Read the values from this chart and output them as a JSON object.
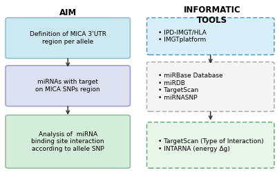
{
  "background_color": "#ffffff",
  "title_aim": "AIM",
  "title_informatic": "INFORMATIC\nTOOLS",
  "title_fontsize": 8.5,
  "title_fontweight": "bold",
  "box1_text": "Definition of MICA 3’UTR\nregion per allele",
  "box2_text": "miRNAs with target\non MICA SNPs region",
  "box3_text": "Analysis of  miRNA\nbinding site interaction\naccording to allele SNP",
  "box1_color": "#cce8f0",
  "box1_edge": "#88bbcc",
  "box2_color": "#dde0f0",
  "box2_edge": "#9999cc",
  "box3_color": "#d4edda",
  "box3_edge": "#88bb99",
  "info_box1_text": "• IPD-IMGT/HLA\n• IMGTplatform",
  "info_box2_text": "• miRBase Database\n• miRDB\n• TargetScan\n• miRNASNP",
  "info_box3_text": "• TargetScan (Type of Interaction)\n• INTARNA (energy Δg)",
  "info_box1_fill": "#d8eef8",
  "info_box2_fill": "#f5f5f5",
  "info_box3_fill": "#e8f5e9",
  "info_box1_edge": "#5599bb",
  "info_box2_edge": "#aaaaaa",
  "info_box3_edge": "#66aa77",
  "text_fontsize": 6.5,
  "arrow_color": "#333333",
  "fig_width": 4.01,
  "fig_height": 2.56,
  "dpi": 100
}
